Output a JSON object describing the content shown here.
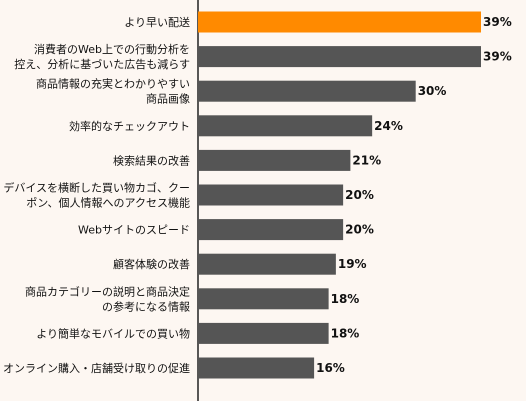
{
  "chart_data": {
    "type": "bar",
    "orientation": "horizontal",
    "categories": [
      [
        "より早い配送"
      ],
      [
        "消費者のWeb上での行動分析を",
        "控え、分析に基づいた広告も減らす"
      ],
      [
        "商品情報の充実とわかりやすい",
        "商品画像"
      ],
      [
        "効率的なチェックアウト"
      ],
      [
        "検索結果の改善"
      ],
      [
        "デバイスを横断した買い物カゴ、クー",
        "ポン、個人情報へのアクセス機能"
      ],
      [
        "Webサイトのスピード"
      ],
      [
        "顧客体験の改善"
      ],
      [
        "商品カテゴリーの説明と商品決定",
        "の参考になる情報"
      ],
      [
        "より簡単なモバイルでの買い物"
      ],
      [
        "オンライン購入・店舗受け取りの促進"
      ]
    ],
    "values": [
      39,
      39,
      30,
      24,
      21,
      20,
      20,
      19,
      18,
      18,
      16
    ],
    "value_labels": [
      "39%",
      "39%",
      "30%",
      "24%",
      "21%",
      "20%",
      "20%",
      "19%",
      "18%",
      "18%",
      "16%"
    ],
    "colors": {
      "highlight": "#ff8a00",
      "bar": "#555555",
      "axis": "#222222"
    },
    "highlight_index": 0,
    "xlim": [
      0,
      39
    ],
    "grid": false,
    "title": "",
    "xlabel": "",
    "ylabel": ""
  }
}
